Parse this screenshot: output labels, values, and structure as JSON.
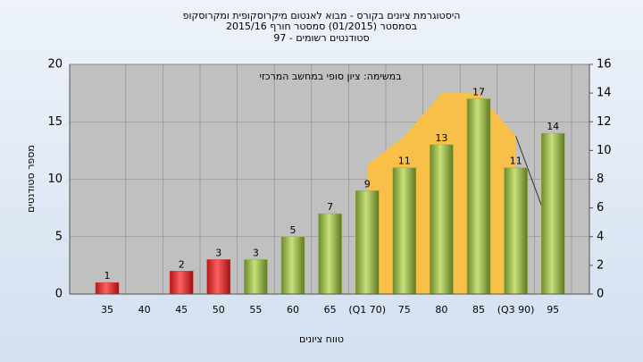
{
  "chart_data": {
    "type": "bar",
    "title_lines": [
      "היסטוגרמת ציונים בקורס - מבוא לאנטום מיקרוסקופית ומקרוסקופ",
      "בסמסטר  (01/2015)  סמסטר חורף  2015/16",
      "סטודנטים רשומים - 97"
    ],
    "annotation": "במשימה: ציון סופי במחשב המרכזי",
    "y_label": "מספר סטודנטים",
    "x_label": "טווח ציונים",
    "categories": [
      "35",
      "40",
      "45",
      "50",
      "55",
      "60",
      "65",
      "(Q1 70)",
      "75",
      "80",
      "85",
      "(Q3 90)",
      "95"
    ],
    "values": [
      1,
      null,
      2,
      3,
      3,
      5,
      7,
      9,
      11,
      13,
      17,
      11,
      14
    ],
    "colors": [
      "#e03030",
      null,
      "#e03030",
      "#e03030",
      "#8fb040",
      "#8fb040",
      "#8fb040",
      "#8fb040",
      "#8fb040",
      "#8fb040",
      "#8fb040",
      "#8fb040",
      "#8fb040"
    ],
    "area_values": [
      null,
      null,
      null,
      null,
      null,
      null,
      null,
      9,
      11,
      14,
      14,
      11,
      null
    ],
    "area_color": "#f8c048",
    "line_values": [
      null,
      null,
      null,
      null,
      null,
      null,
      null,
      null,
      null,
      null,
      null,
      11,
      4
    ],
    "ylim": [
      0,
      20
    ],
    "yticks": [
      0,
      5,
      10,
      15,
      20
    ],
    "y2lim": [
      0,
      16
    ],
    "y2ticks": [
      0,
      2,
      4,
      6,
      8,
      10,
      12,
      14,
      16
    ],
    "grid": true
  }
}
